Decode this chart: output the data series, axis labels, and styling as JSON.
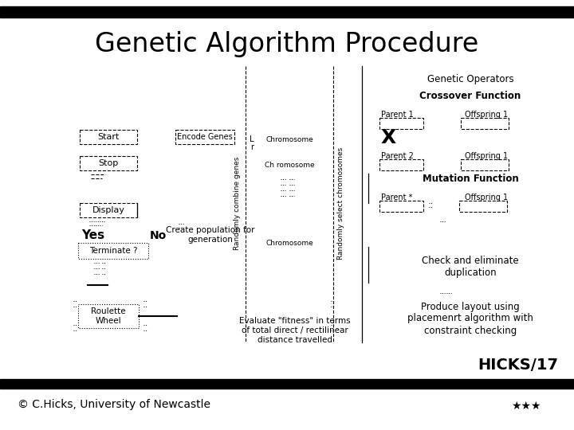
{
  "title": "Genetic Algorithm Procedure",
  "bg_color": "#ffffff",
  "hicks_label": "HICKS/17",
  "copyright_label": "© C.Hicks, University of Newcastle",
  "evaluate_text": "Evaluate \"fitness\" in terms\nof total direct / rectilinear\ndistance travelled",
  "create_pop_text": "Create population for\ngeneration",
  "randomly_combine": "Randomly combine genes",
  "randomly_select": "Randomly select chromosomes",
  "genetic_ops": "Genetic Operators",
  "crossover_fn": "Crossover Function",
  "mutation_fn": "Mutation Function",
  "parent1": "Parent 1",
  "offspring1": "Offspring 1",
  "x_sym": "X",
  "parent2": "Parent 2",
  "offspring2": "Offspring 1",
  "parent3": "Parent *",
  "offspring3": "Offspring 1",
  "check_elim": "Check and eliminate\nduplication",
  "produce": "Produce layout using\nplacemenrt algorithm with\nconstraint checking",
  "start": "Start",
  "stop": "Stop",
  "display": "Display",
  "yes": "Yes",
  "no": "No",
  "terminate": "Terminate ?",
  "roulette": "Roulette\nWheel",
  "encode": "Encode Genes",
  "chrom1": "Chromosome",
  "chrom2": "Ch romosome",
  "chrom3": "Chromosome",
  "L_label": "L",
  "r_label": "r"
}
